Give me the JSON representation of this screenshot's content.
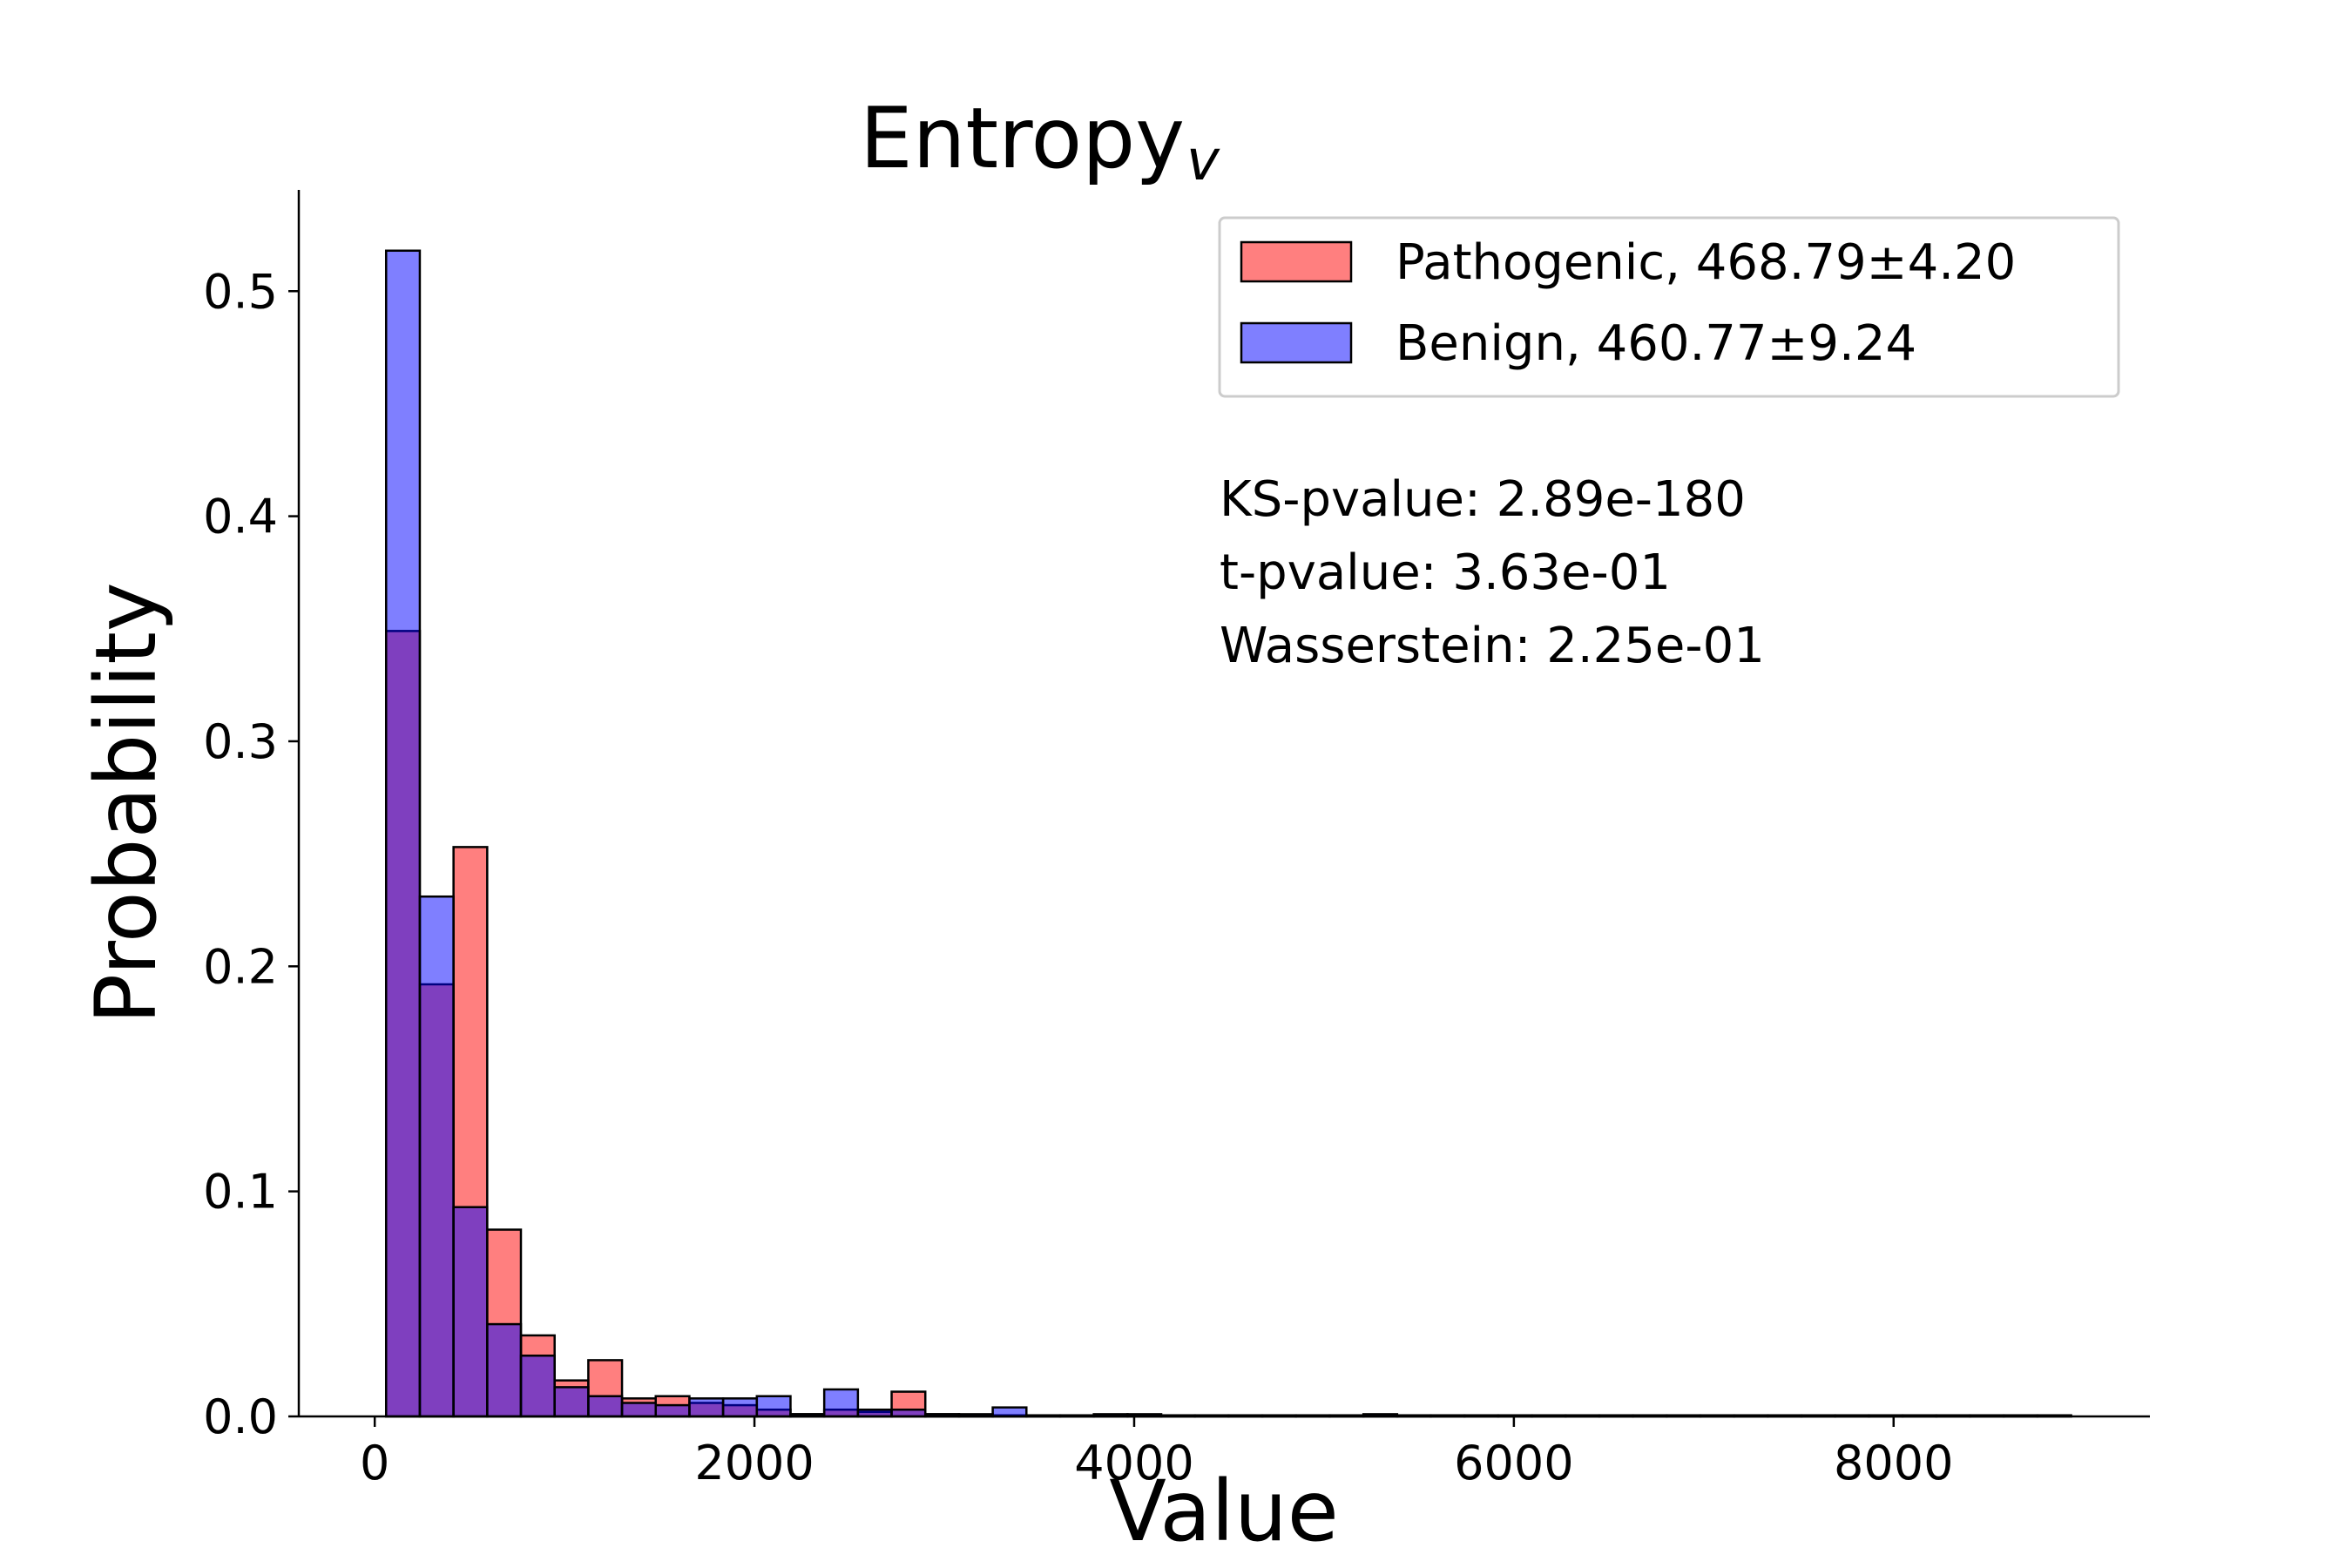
{
  "chart_data": {
    "type": "bar",
    "subtype": "overlaid-histogram",
    "title": "Entropy",
    "title_subscript": "v",
    "xlabel": "Value",
    "ylabel": "Probability",
    "xlim": [
      -400,
      9350
    ],
    "ylim": [
      0,
      0.545
    ],
    "xticks": [
      0,
      2000,
      4000,
      6000,
      8000
    ],
    "yticks": [
      0.0,
      0.1,
      0.2,
      0.3,
      0.4,
      0.5
    ],
    "xtick_labels": [
      "0",
      "2000",
      "4000",
      "6000",
      "8000"
    ],
    "ytick_labels": [
      "0.0",
      "0.1",
      "0.2",
      "0.3",
      "0.4",
      "0.5"
    ],
    "grid": false,
    "legend_position": "top-right",
    "bin_start": 60,
    "bin_width": 177.5,
    "series": [
      {
        "name": "Pathogenic, 468.79±4.20",
        "color": "#ff0000",
        "alpha": 0.5,
        "values": [
          0.349,
          0.192,
          0.253,
          0.083,
          0.036,
          0.016,
          0.025,
          0.008,
          0.009,
          0.006,
          0.005,
          0.003,
          0.001,
          0.003,
          0.002,
          0.011,
          0.001,
          0.0005,
          0.0005,
          0.0003,
          0.0003,
          0.0003,
          0.0003,
          0.0003,
          0.0003,
          0.0003,
          0.0002,
          0.0002,
          0.0002,
          0.0002,
          0.0002,
          0.0002,
          0.0002,
          0.0002,
          0.0002,
          0.0002,
          0.0002,
          0.0002,
          0.0002,
          0.0002,
          0.0002,
          0.0002,
          0.0002,
          0.0002,
          0.0002,
          0.0002,
          0.0002,
          0.0002,
          0.0002,
          0.0002
        ]
      },
      {
        "name": "Benign, 460.77±9.24",
        "color": "#0000ff",
        "alpha": 0.5,
        "values": [
          0.518,
          0.231,
          0.093,
          0.041,
          0.027,
          0.013,
          0.009,
          0.006,
          0.005,
          0.008,
          0.008,
          0.009,
          0.001,
          0.012,
          0.003,
          0.003,
          0.001,
          0.001,
          0.004,
          0.0005,
          0.0005,
          0.001,
          0.001,
          0.0005,
          0.0005,
          0.0005,
          0.0005,
          0.0005,
          0.0005,
          0.001,
          0.0005,
          0.0005,
          0.0005,
          0.0005,
          0.0005,
          0.0005,
          0.0005,
          0.0005,
          0.0005,
          0.0005,
          0.0005,
          0.0005,
          0.0005,
          0.0005,
          0.0005,
          0.0005,
          0.0005,
          0.0005,
          0.0005,
          0.0005
        ]
      }
    ],
    "annotations": [
      "KS-pvalue: 2.89e-180",
      "t-pvalue: 3.63e-01",
      "Wasserstein: 2.25e-01"
    ]
  }
}
